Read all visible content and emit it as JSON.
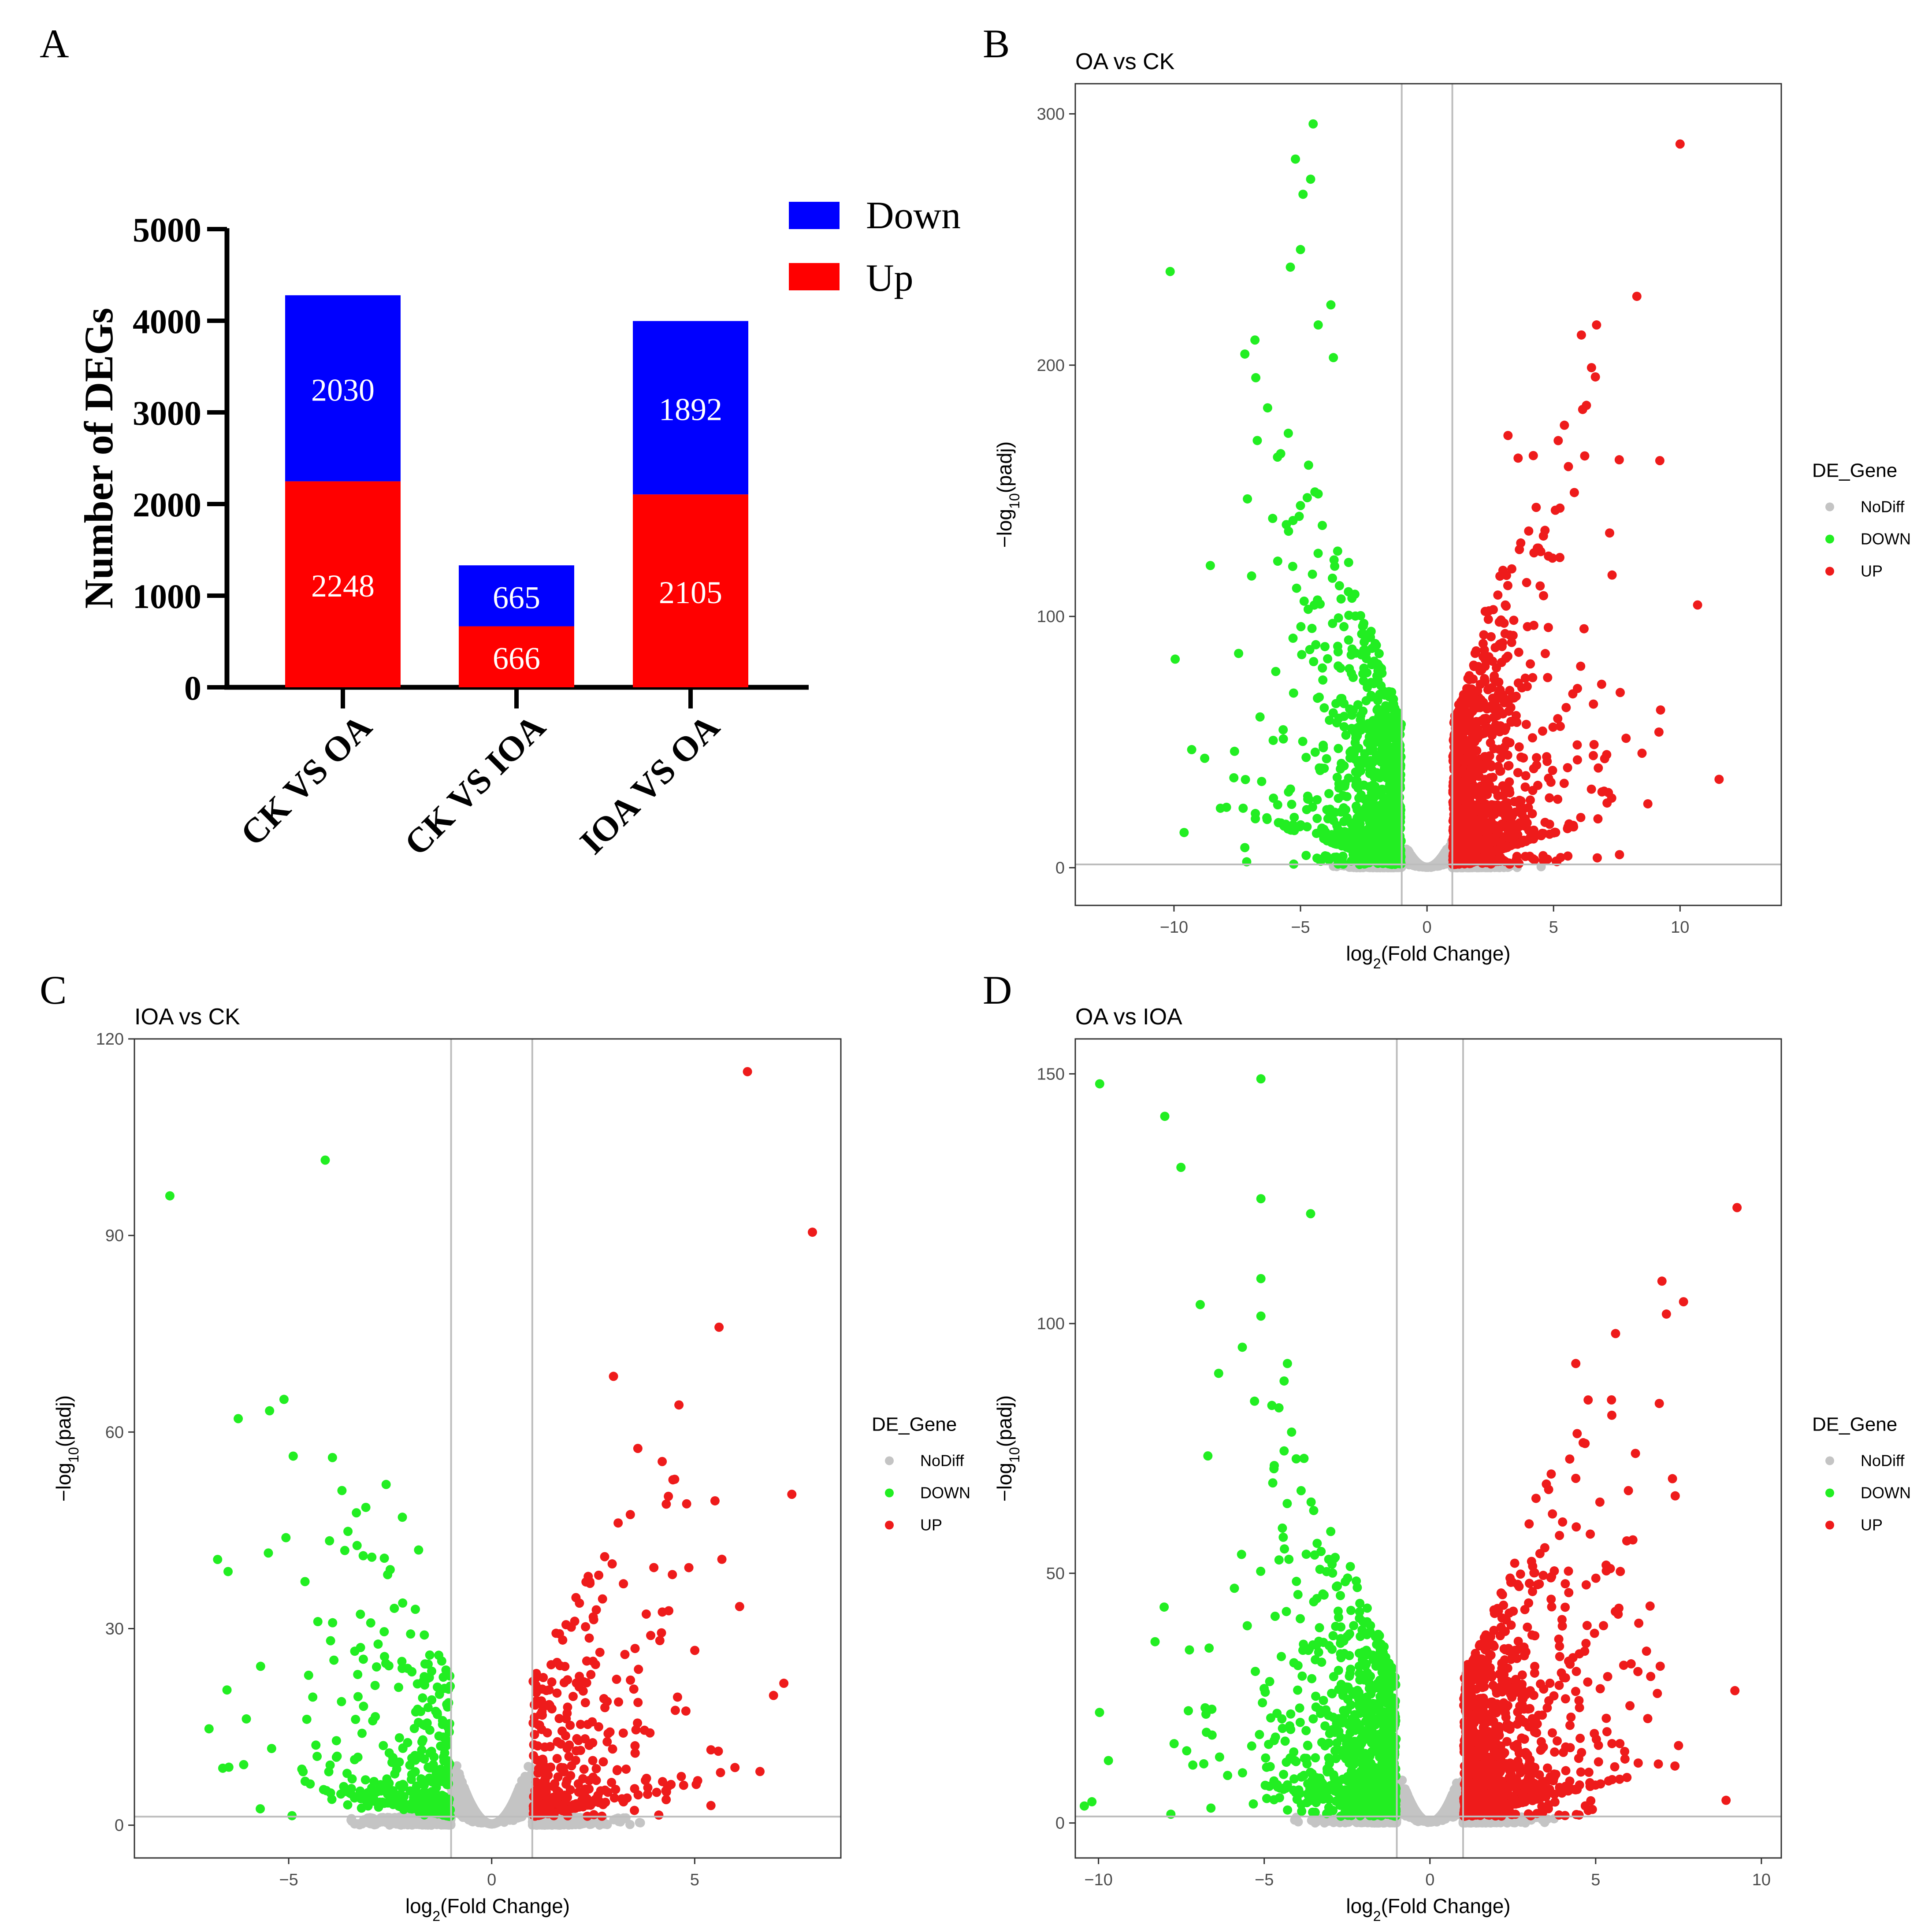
{
  "panel_labels": [
    "A",
    "B",
    "C",
    "D"
  ],
  "colors": {
    "up": "#ff0000",
    "down": "#0000ff",
    "volcano_up": "#ee1b1b",
    "volcano_down": "#22ee22",
    "volcano_nodiff": "#c4c4c4",
    "threshold_line": "#bdbdbd",
    "axis": "#000000",
    "tick_text": "#4d4d4d"
  },
  "chart_data": [
    {
      "type": "bar",
      "stacked": true,
      "panel": "A",
      "categories": [
        "CK VS OA",
        "CK VS IOA",
        "IOA VS OA"
      ],
      "series": [
        {
          "name": "Up",
          "values": [
            2248,
            666,
            2105
          ]
        },
        {
          "name": "Down",
          "values": [
            2030,
            665,
            1892
          ]
        }
      ],
      "legend": [
        "Down",
        "Up"
      ],
      "ylabel": "Number of DEGs",
      "xlabel": "",
      "ylim": [
        0,
        5000
      ],
      "yticks": [
        0,
        1000,
        2000,
        3000,
        4000,
        5000
      ]
    },
    {
      "type": "scatter",
      "panel": "B",
      "title": "OA vs CK",
      "xlabel_base": "log",
      "xlabel_sub": "2",
      "xlabel_rest": "(Fold Change)",
      "ylabel_pre": "−log",
      "ylabel_sub": "10",
      "ylabel_rest": "(padj)",
      "xlim": [
        -13.9,
        14
      ],
      "ylim": [
        -15,
        312
      ],
      "xticks": [
        -10,
        -5,
        0,
        5,
        10
      ],
      "xtick_labels": [
        "−10",
        "−5",
        "0",
        "5",
        "10"
      ],
      "yticks": [
        0,
        100,
        200,
        300
      ],
      "vlines": [
        -1,
        1
      ],
      "hline": 1.3,
      "legend_title": "DE_Gene",
      "legend_entries": [
        "NoDiff",
        "DOWN",
        "UP"
      ],
      "n_up": 2248,
      "n_down": 2030,
      "highlighted_points": {
        "up": [
          [
            10,
            288
          ],
          [
            9.2,
            162
          ],
          [
            6.1,
            212
          ],
          [
            6.7,
            216
          ],
          [
            6.3,
            184
          ],
          [
            6.5,
            199
          ],
          [
            7.1,
            45
          ],
          [
            6.9,
            73
          ],
          [
            6.6,
            49
          ],
          [
            3.2,
            172
          ],
          [
            4.2,
            164
          ],
          [
            3.6,
            163
          ],
          [
            4.6,
            132
          ],
          [
            4.8,
            124
          ],
          [
            2.3,
            102
          ]
        ],
        "down": [
          [
            -9.3,
            47
          ],
          [
            -9.6,
            14
          ],
          [
            -6.8,
            210
          ],
          [
            -6.3,
            183
          ],
          [
            -6.1,
            139
          ],
          [
            -4.5,
            296
          ],
          [
            -5.2,
            282
          ],
          [
            -4.9,
            268
          ],
          [
            -4.6,
            274
          ],
          [
            -3.8,
            224
          ],
          [
            -5.4,
            239
          ],
          [
            -5.0,
            246
          ],
          [
            -4.3,
            216
          ],
          [
            -3.7,
            203
          ],
          [
            -5.9,
            122
          ],
          [
            -7.2,
            8
          ],
          [
            -6.6,
            60
          ]
        ]
      }
    },
    {
      "type": "scatter",
      "panel": "C",
      "title": "IOA vs CK",
      "xlabel_base": "log",
      "xlabel_sub": "2",
      "xlabel_rest": "(Fold Change)",
      "ylabel_pre": "−log",
      "ylabel_sub": "10",
      "ylabel_rest": "(padj)",
      "xlim": [
        -8.8,
        8.6
      ],
      "ylim": [
        -5,
        120
      ],
      "xticks": [
        -5,
        0,
        5
      ],
      "xtick_labels": [
        "−5",
        "0",
        "5"
      ],
      "yticks": [
        0,
        30,
        60,
        90,
        120
      ],
      "vlines": [
        -1,
        1
      ],
      "hline": 1.3,
      "legend_title": "DE_Gene",
      "legend_entries": [
        "NoDiff",
        "DOWN",
        "UP"
      ],
      "n_up": 666,
      "n_down": 665,
      "highlighted_points": {
        "up": [
          [
            6.3,
            115
          ],
          [
            7.9,
            90.5
          ],
          [
            5.6,
            76
          ],
          [
            3.0,
            68.5
          ],
          [
            3.6,
            57.5
          ],
          [
            4.2,
            55.5
          ],
          [
            4.3,
            49
          ],
          [
            5.5,
            49.5
          ],
          [
            5.4,
            11.5
          ],
          [
            5.4,
            3
          ]
        ],
        "down": [
          [
            -4.1,
            101.5
          ],
          [
            -2.6,
            52
          ],
          [
            -3.1,
            48.5
          ],
          [
            -2.2,
            47
          ],
          [
            -1.8,
            42
          ],
          [
            -2.5,
            39
          ],
          [
            -4.3,
            10.5
          ],
          [
            -5.7,
            2.5
          ],
          [
            -3.3,
            23
          ]
        ]
      }
    },
    {
      "type": "scatter",
      "panel": "D",
      "title": "OA vs IOA",
      "xlabel_base": "log",
      "xlabel_sub": "2",
      "xlabel_rest": "(Fold Change)",
      "ylabel_pre": "−log",
      "ylabel_sub": "10",
      "ylabel_rest": "(padj)",
      "xlim": [
        -10.7,
        10.6
      ],
      "ylim": [
        -7,
        157
      ],
      "xticks": [
        -10,
        -5,
        0,
        5,
        10
      ],
      "xtick_labels": [
        "−10",
        "−5",
        "0",
        "5",
        "10"
      ],
      "yticks": [
        0,
        50,
        100,
        150
      ],
      "vlines": [
        -1,
        1
      ],
      "hline": 1.3,
      "legend_title": "DE_Gene",
      "legend_entries": [
        "NoDiff",
        "DOWN",
        "UP"
      ],
      "n_up": 2105,
      "n_down": 1892,
      "highlighted_points": {
        "up": [
          [
            7.0,
            108.5
          ],
          [
            5.6,
            98
          ],
          [
            4.4,
            92
          ],
          [
            6.2,
            74
          ],
          [
            4.4,
            69
          ],
          [
            7.4,
            65.5
          ],
          [
            3.2,
            65
          ],
          [
            9.2,
            26.5
          ],
          [
            7.5,
            15.5
          ],
          [
            5.7,
            43
          ],
          [
            6.3,
            40
          ]
        ],
        "down": [
          [
            -5.1,
            149
          ],
          [
            -8.0,
            141.5
          ],
          [
            -5.1,
            125
          ],
          [
            -3.6,
            122
          ],
          [
            -5.1,
            109
          ],
          [
            -5.1,
            101.5
          ],
          [
            -4.3,
            92
          ],
          [
            -4.4,
            88.5
          ],
          [
            -6.7,
            73.5
          ],
          [
            -4.4,
            74.5
          ],
          [
            -3.8,
            73
          ],
          [
            -9.7,
            12.5
          ],
          [
            -5.9,
            47
          ]
        ]
      }
    }
  ]
}
